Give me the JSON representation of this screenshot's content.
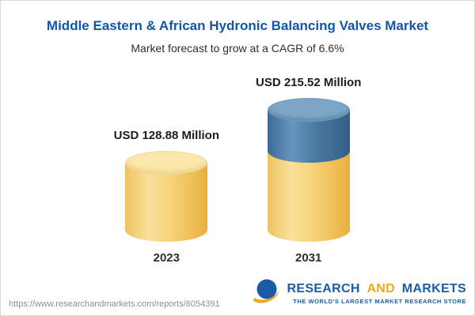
{
  "chart_data": {
    "type": "bar",
    "subtype": "3d-cylinder",
    "title": "Middle Eastern & African Hydronic Balancing Valves Market",
    "subtitle": "Market forecast to grow at a CAGR of 6.6%",
    "unit": "USD Million",
    "cagr_percent": 6.6,
    "categories": [
      "2023",
      "2031"
    ],
    "values": [
      128.88,
      215.52
    ],
    "value_labels": [
      "USD 128.88 Million",
      "USD 215.52 Million"
    ],
    "colors": {
      "base_segment": "#F6D478",
      "growth_segment": "#4B7BA3"
    },
    "grid": false,
    "legend": false,
    "axes": false
  },
  "footer": {
    "url": "https://www.researchandmarkets.com/reports/6054391",
    "logo": {
      "word_research": "RESEARCH",
      "word_and": "AND",
      "word_markets": "MARKETS",
      "tagline": "THE WORLD'S LARGEST MARKET RESEARCH STORE"
    }
  }
}
